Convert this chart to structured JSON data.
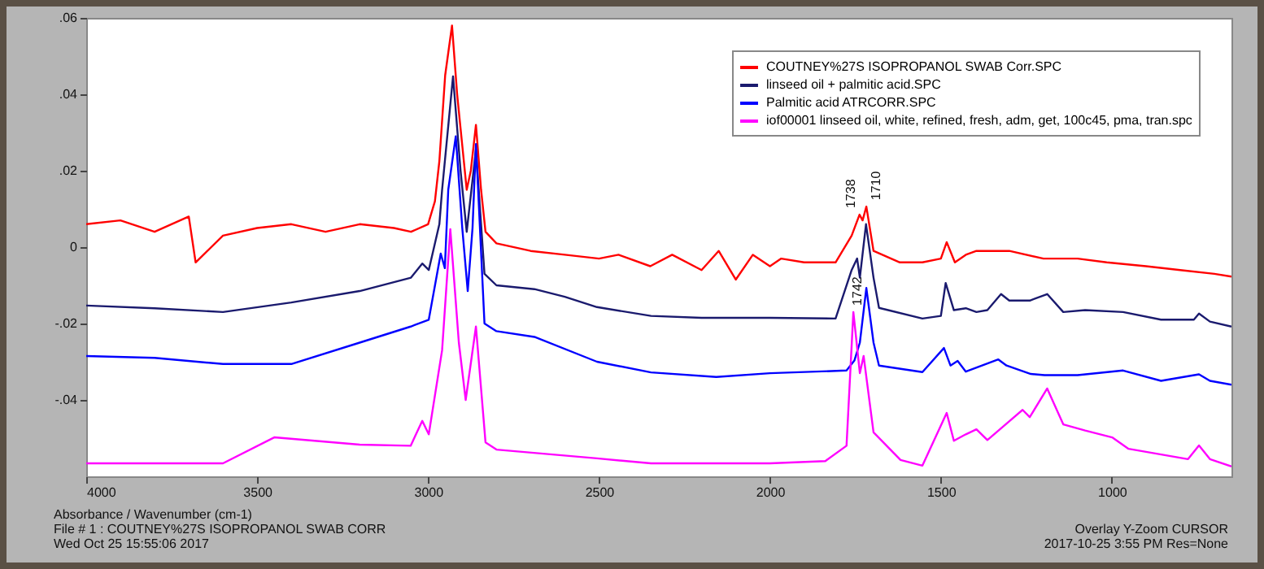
{
  "chart_data": {
    "type": "line",
    "xlabel": "Absorbance / Wavenumber (cm-1)",
    "xlim": [
      4000,
      650
    ],
    "xticks": [
      4000,
      3500,
      3000,
      2500,
      2000,
      1500,
      1000
    ],
    "ylim": [
      -0.06,
      0.06
    ],
    "yticks": [
      {
        "value": 0.06,
        "label": ".06"
      },
      {
        "value": 0.04,
        "label": ".04"
      },
      {
        "value": 0.02,
        "label": ".02"
      },
      {
        "value": 0,
        "label": "0"
      },
      {
        "value": -0.02,
        "label": "-.02"
      },
      {
        "value": -0.04,
        "label": "-.04"
      }
    ],
    "grid": false,
    "legend": "top right",
    "series": [
      {
        "name": "COUTNEY%27S ISOPROPANOL SWAB Corr.SPC",
        "color": "#ff0000",
        "x": [
          4000,
          3900,
          3800,
          3700,
          3680,
          3600,
          3500,
          3400,
          3300,
          3200,
          3100,
          3050,
          3000,
          2980,
          2967,
          2950,
          2930,
          2915,
          2887,
          2875,
          2860,
          2845,
          2832,
          2800,
          2700,
          2600,
          2500,
          2443,
          2350,
          2286,
          2200,
          2150,
          2100,
          2050,
          2000,
          1967,
          1900,
          1808,
          1761,
          1738,
          1729,
          1718,
          1697,
          1620,
          1554,
          1500,
          1483,
          1459,
          1427,
          1396,
          1364,
          1300,
          1200,
          1100,
          1015,
          900,
          800,
          700,
          650
        ],
        "values": [
          0.006,
          0.007,
          0.004,
          0.008,
          -0.004,
          0.003,
          0.005,
          0.006,
          0.004,
          0.006,
          0.005,
          0.004,
          0.006,
          0.012,
          0.0225,
          0.045,
          0.058,
          0.04,
          0.015,
          0.02,
          0.032,
          0.015,
          0.004,
          0.001,
          -0.001,
          -0.002,
          -0.003,
          -0.002,
          -0.005,
          -0.002,
          -0.006,
          -0.001,
          -0.0085,
          -0.002,
          -0.005,
          -0.003,
          -0.004,
          -0.004,
          0.003,
          0.0085,
          0.007,
          0.0106,
          -0.001,
          -0.004,
          -0.004,
          -0.003,
          0.0013,
          -0.004,
          -0.002,
          -0.001,
          -0.001,
          -0.001,
          -0.003,
          -0.003,
          -0.004,
          -0.005,
          -0.006,
          -0.007,
          -0.0077
        ]
      },
      {
        "name": "linseed oil + palmitic acid.SPC",
        "color": "#1a1a6e",
        "x": [
          4000,
          3800,
          3600,
          3400,
          3200,
          3050,
          3017,
          2998,
          2967,
          2959,
          2927,
          2905,
          2887,
          2860,
          2835,
          2800,
          2689,
          2600,
          2506,
          2348,
          2200,
          2000,
          1808,
          1761,
          1745,
          1737,
          1719,
          1697,
          1681,
          1554,
          1500,
          1486,
          1462,
          1427,
          1396,
          1364,
          1324,
          1300,
          1240,
          1189,
          1142,
          1078,
          967,
          856,
          760,
          745,
          713,
          650
        ],
        "values": [
          -0.0153,
          -0.016,
          -0.017,
          -0.0145,
          -0.0115,
          -0.008,
          -0.0043,
          -0.006,
          0.006,
          0.015,
          0.0447,
          0.02,
          0.004,
          0.0255,
          -0.007,
          -0.01,
          -0.011,
          -0.013,
          -0.0157,
          -0.018,
          -0.0185,
          -0.0185,
          -0.0187,
          -0.006,
          -0.003,
          -0.008,
          0.006,
          -0.008,
          -0.0159,
          -0.0187,
          -0.018,
          -0.0094,
          -0.0165,
          -0.016,
          -0.017,
          -0.0165,
          -0.0123,
          -0.014,
          -0.014,
          -0.0123,
          -0.017,
          -0.0165,
          -0.017,
          -0.019,
          -0.019,
          -0.0174,
          -0.0195,
          -0.0208
        ]
      },
      {
        "name": "Palmitic acid ATRCORR.SPC",
        "color": "#0000ff",
        "x": [
          4000,
          3800,
          3600,
          3400,
          3200,
          3051,
          2998,
          2963,
          2951,
          2941,
          2919,
          2900,
          2884,
          2870,
          2860,
          2835,
          2800,
          2689,
          2506,
          2348,
          2157,
          2000,
          1776,
          1753,
          1737,
          1718,
          1697,
          1681,
          1554,
          1491,
          1472,
          1451,
          1427,
          1332,
          1308,
          1237,
          1197,
          1100,
          967,
          856,
          745,
          713,
          650
        ],
        "values": [
          -0.0285,
          -0.029,
          -0.0306,
          -0.0306,
          -0.025,
          -0.0208,
          -0.019,
          -0.0017,
          -0.0055,
          0.015,
          0.029,
          0.005,
          -0.0115,
          0.005,
          0.027,
          -0.02,
          -0.022,
          -0.0235,
          -0.03,
          -0.0328,
          -0.034,
          -0.033,
          -0.0323,
          -0.0297,
          -0.025,
          -0.0107,
          -0.025,
          -0.031,
          -0.0327,
          -0.0264,
          -0.031,
          -0.0298,
          -0.0326,
          -0.0294,
          -0.031,
          -0.0332,
          -0.0335,
          -0.0335,
          -0.0323,
          -0.035,
          -0.0333,
          -0.035,
          -0.036
        ]
      },
      {
        "name": "iof00001 linseed oil, white, refined, fresh, adm, get, 100c45, pma, tran.spc",
        "color": "#ff00ff",
        "x": [
          4000,
          3600,
          3450,
          3200,
          3051,
          3017,
          2998,
          2959,
          2935,
          2910,
          2890,
          2860,
          2832,
          2800,
          2506,
          2348,
          2000,
          1838,
          1776,
          1756,
          1737,
          1726,
          1697,
          1618,
          1554,
          1483,
          1462,
          1427,
          1396,
          1364,
          1261,
          1240,
          1189,
          1142,
          1078,
          999,
          951,
          777,
          745,
          713,
          650
        ],
        "values": [
          -0.0566,
          -0.0566,
          -0.0498,
          -0.0517,
          -0.052,
          -0.0455,
          -0.049,
          -0.027,
          0.0047,
          -0.025,
          -0.04,
          -0.0208,
          -0.0511,
          -0.053,
          -0.0553,
          -0.0566,
          -0.0566,
          -0.056,
          -0.052,
          -0.017,
          -0.033,
          -0.0285,
          -0.0485,
          -0.0557,
          -0.0572,
          -0.0434,
          -0.0507,
          -0.049,
          -0.0477,
          -0.0505,
          -0.0426,
          -0.0445,
          -0.037,
          -0.0464,
          -0.048,
          -0.0498,
          -0.0528,
          -0.0555,
          -0.0519,
          -0.0555,
          -0.0574
        ]
      }
    ],
    "annotations": [
      {
        "text": "1738",
        "x": 1738,
        "y": 0.0085
      },
      {
        "text": "1710",
        "x": 1710,
        "y": 0.0106
      },
      {
        "text": "1742",
        "x": 1742,
        "y": -0.017
      },
      "File # 1 : COUTNEY%27S ISOPROPANOL SWAB CORR",
      "Overlay Y-Zoom CURSOR",
      "Wed Oct 25 15:55:06 2017",
      "2017-10-25  3:55 PM  Res=None"
    ]
  }
}
